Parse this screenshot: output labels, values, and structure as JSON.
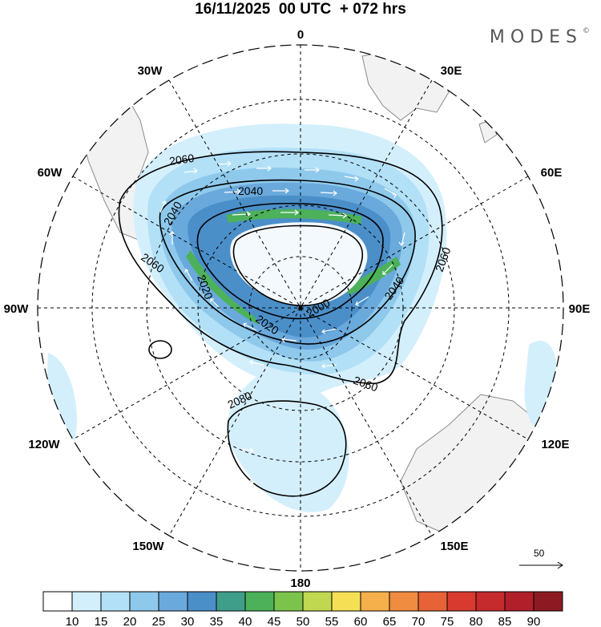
{
  "title": "16/11/2025  00 UTC  + 072 hrs",
  "brand": "MODES",
  "brand_mark": "©",
  "colors": {
    "land": "#f2f2f2",
    "coast": "#8a8a8a",
    "grid": "#000000",
    "contour": "#000000",
    "arrow": "#ffffff"
  },
  "map": {
    "projection": "south-polar-stereographic",
    "longitude_labels": [
      "0",
      "30E",
      "60E",
      "90E",
      "120E",
      "150E",
      "180",
      "150W",
      "120W",
      "90W",
      "60W",
      "30W"
    ],
    "contour_labels": [
      "2060",
      "2040",
      "2040",
      "2060",
      "2020",
      "2040",
      "2000",
      "2020",
      "2060",
      "2080",
      "2060"
    ],
    "vector_scale": {
      "value": "50"
    }
  },
  "colorbar": {
    "levels": [
      "10",
      "15",
      "20",
      "25",
      "30",
      "35",
      "40",
      "45",
      "50",
      "55",
      "60",
      "65",
      "70",
      "75",
      "80",
      "85",
      "90"
    ],
    "colors": [
      "#ffffff",
      "#d4effc",
      "#b2e0f7",
      "#8ec9ec",
      "#6aa9dc",
      "#4b8fc9",
      "#3f9e8a",
      "#4cb159",
      "#7cc34c",
      "#c0d84f",
      "#f5df55",
      "#f5b04b",
      "#ef8c40",
      "#e76337",
      "#d83a2f",
      "#c52a2d",
      "#b01f2a",
      "#8d1a22"
    ]
  }
}
